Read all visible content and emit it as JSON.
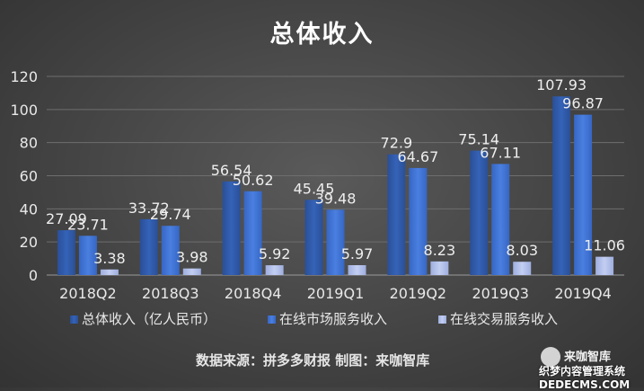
{
  "chart_data": {
    "type": "bar",
    "title": "总体收入",
    "categories": [
      "2018Q2",
      "2018Q3",
      "2018Q4",
      "2019Q1",
      "2019Q2",
      "2019Q3",
      "2019Q4"
    ],
    "series": [
      {
        "name": "总体收入（亿人民币）",
        "values": [
          27.09,
          33.72,
          56.54,
          45.45,
          72.9,
          75.14,
          107.93
        ],
        "color": "#2f5aa8"
      },
      {
        "name": "在线市场服务收入",
        "values": [
          23.71,
          29.74,
          50.62,
          39.48,
          64.67,
          67.11,
          96.87
        ],
        "color": "#3a6fd0"
      },
      {
        "name": "在线交易服务收入",
        "values": [
          3.38,
          3.98,
          5.92,
          5.97,
          8.23,
          8.03,
          11.06
        ],
        "color": "#aab8e6"
      }
    ],
    "y_ticks": [
      0,
      20,
      40,
      60,
      80,
      100,
      120
    ],
    "ylim": [
      0,
      120
    ],
    "grid": true,
    "legend_position": "bottom"
  },
  "source_note": "数据来源：拼多多财报 制图：来咖智库",
  "watermark": {
    "top": "来咖智库",
    "bottom": "织梦内容管理系统 DEDECMS.COM"
  }
}
